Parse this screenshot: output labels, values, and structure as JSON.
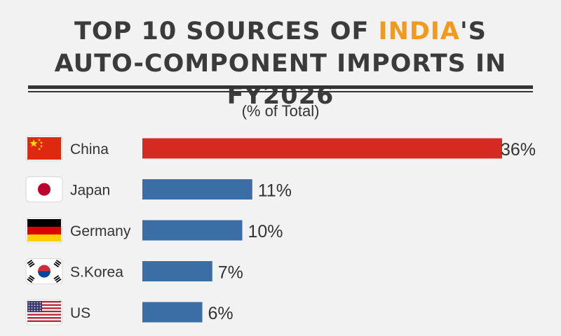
{
  "header": {
    "title_pre": "TOP 10 SOURCES OF ",
    "title_highlight": "INDIA",
    "title_post": "'S",
    "title_line2": "AUTO-COMPONENT IMPORTS IN FY2026",
    "subtitle": "(% of Total)"
  },
  "colors": {
    "highlight": "#f39a1e",
    "top_bar": "#d42a20",
    "bar": "#3a6ea5",
    "text": "#333333"
  },
  "chart_data": {
    "type": "bar",
    "orientation": "horizontal",
    "title": "TOP 10 SOURCES OF INDIA'S AUTO-COMPONENT IMPORTS IN FY2026",
    "subtitle": "(% of Total)",
    "categories": [
      "China",
      "Japan",
      "Germany",
      "S.Korea",
      "US"
    ],
    "values": [
      36,
      11,
      10,
      7,
      6
    ],
    "value_labels": [
      "36%",
      "11%",
      "10%",
      "7%",
      "6%"
    ],
    "flags": [
      "china-flag",
      "japan-flag",
      "germany-flag",
      "south-korea-flag",
      "us-flag"
    ],
    "xlim": [
      0,
      36
    ],
    "grid": false,
    "legend": "none"
  }
}
